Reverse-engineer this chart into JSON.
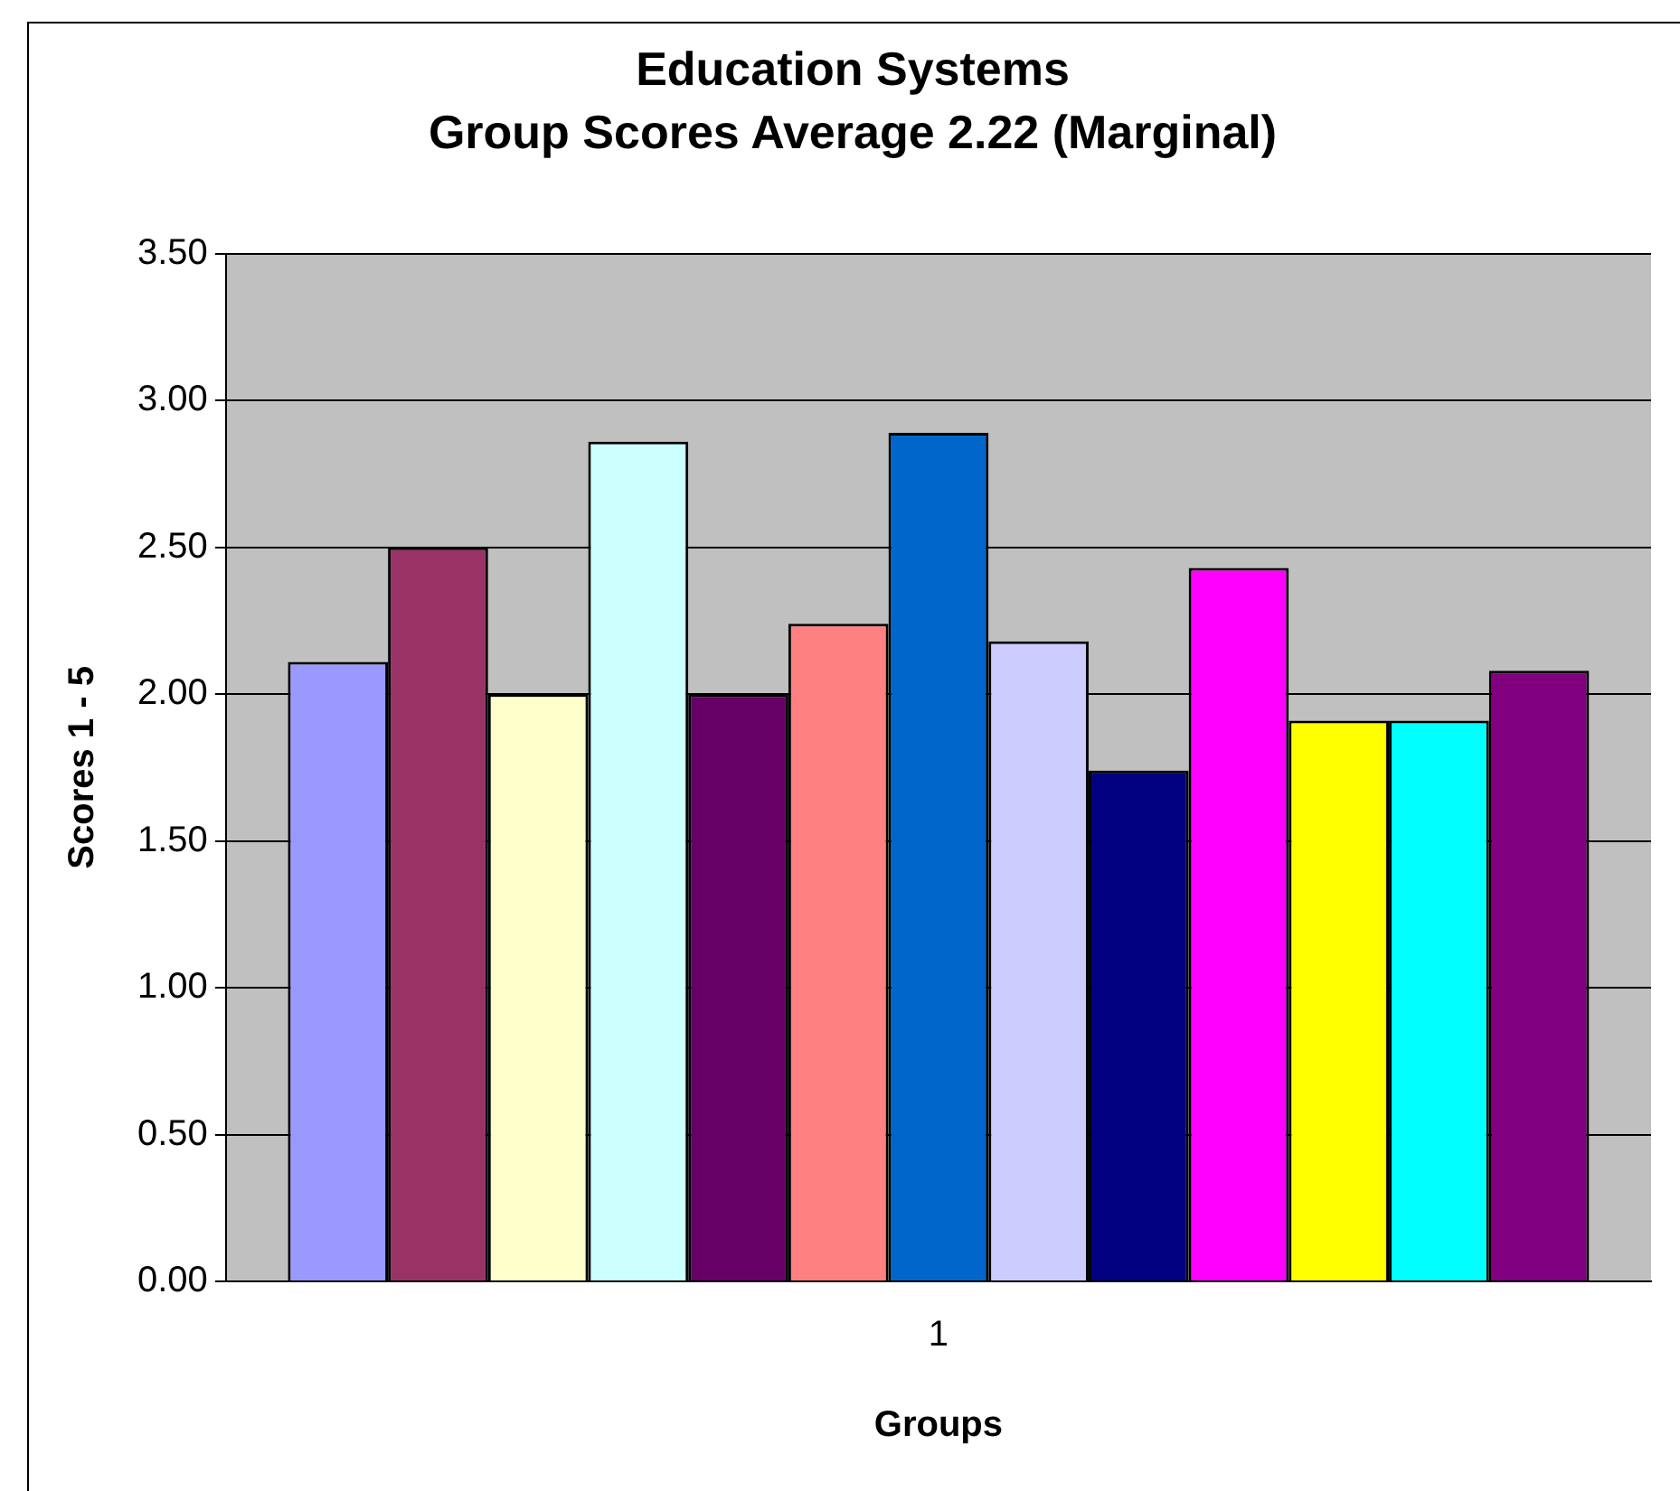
{
  "chart_data": {
    "type": "bar",
    "title": "Education Systems",
    "subtitle": "Group Scores Average 2.22 (Marginal)",
    "xlabel": "Groups",
    "ylabel": "Scores 1 - 5",
    "categories": [
      "1"
    ],
    "series": [
      {
        "color": "#9999ff",
        "values": [
          2.11
        ]
      },
      {
        "color": "#993366",
        "values": [
          2.5
        ]
      },
      {
        "color": "#ffffcc",
        "values": [
          2.0
        ]
      },
      {
        "color": "#ccffff",
        "values": [
          2.86
        ]
      },
      {
        "color": "#660066",
        "values": [
          2.0
        ]
      },
      {
        "color": "#ff8080",
        "values": [
          2.24
        ]
      },
      {
        "color": "#0066cc",
        "values": [
          2.89
        ]
      },
      {
        "color": "#ccccff",
        "values": [
          2.18
        ]
      },
      {
        "color": "#000080",
        "values": [
          1.74
        ]
      },
      {
        "color": "#ff00ff",
        "values": [
          2.43
        ]
      },
      {
        "color": "#ffff00",
        "values": [
          1.91
        ]
      },
      {
        "color": "#00ffff",
        "values": [
          1.91
        ]
      },
      {
        "color": "#800080",
        "values": [
          2.08
        ]
      }
    ],
    "ylim": [
      0,
      3.5
    ],
    "yticks": [
      {
        "value": 0,
        "label": "0.00"
      },
      {
        "value": 0.5,
        "label": "0.50"
      },
      {
        "value": 1,
        "label": "1.00"
      },
      {
        "value": 1.5,
        "label": "1.50"
      },
      {
        "value": 2,
        "label": "2.00"
      },
      {
        "value": 2.5,
        "label": "2.50"
      },
      {
        "value": 3,
        "label": "3.00"
      },
      {
        "value": 3.5,
        "label": "3.50"
      }
    ],
    "grid": "y",
    "legend": false
  }
}
